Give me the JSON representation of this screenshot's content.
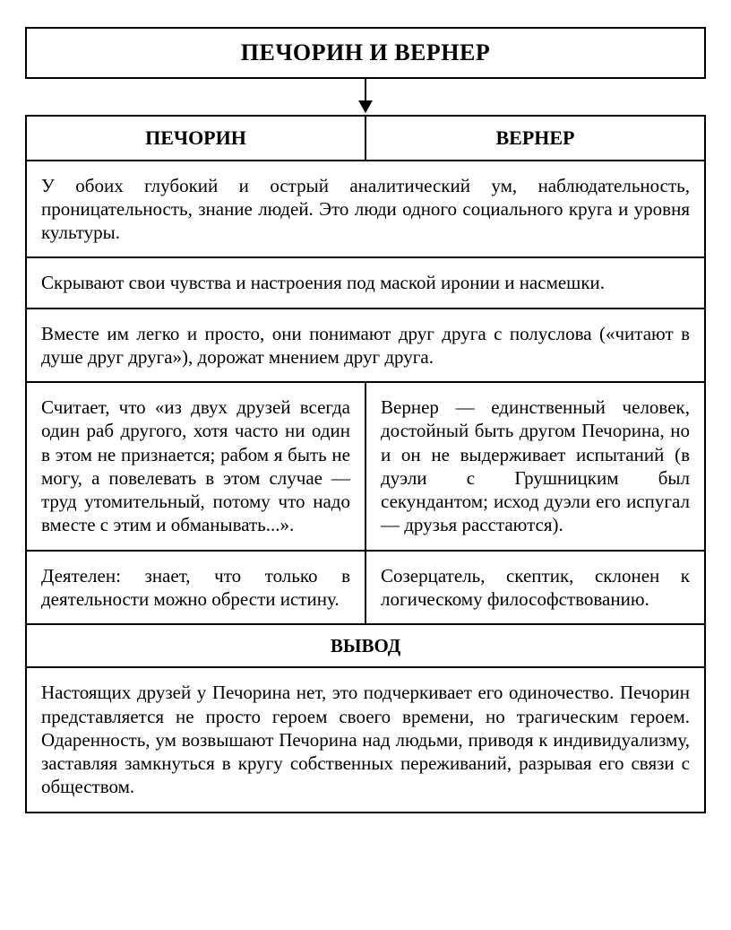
{
  "title": "ПЕЧОРИН И ВЕРНЕР",
  "headers": {
    "left": "ПЕЧОРИН",
    "right": "ВЕРНЕР"
  },
  "common": [
    "У обоих глубокий и острый аналитический ум, наблюдательность, проницательность, знание людей. Это люди одного социального круга и уровня культуры.",
    "Скрывают свои чувства и настроения под маской иронии и насмешки.",
    "Вместе им легко и просто, они понимают друг друга с полуслова («читают в душе друг друга»), дорожат мнением друг друга."
  ],
  "diff": [
    {
      "left": "Считает, что «из двух друзей всегда один раб другого, хотя часто ни один в этом не признается; рабом я быть не могу, а повелевать в этом случае — труд утомительный, потому что надо вместе с этим и обманывать...».",
      "right": "Вернер — единственный человек, достойный быть другом Печорина, но и он не выдерживает испытаний (в дуэли с Грушницким был секундантом; исход дуэли его испугал — друзья расстаются)."
    },
    {
      "left": "Деятелен: знает, что только в деятельности можно обрести истину.",
      "right": "Созерцатель, скептик, склонен к логическому философствованию."
    }
  ],
  "conclusion": {
    "heading": "ВЫВОД",
    "text": "Настоящих друзей у Печорина нет, это подчеркивает его одиночество. Печорин представляется не просто героем своего времени, но трагическим героем. Одаренность, ум возвышают Печорина над людьми, приводя к индивидуализму, заставляя замкнуться в кругу собственных переживаний, разрывая его связи с обществом."
  },
  "styles": {
    "border_color": "#000000",
    "background_color": "#ffffff",
    "text_color": "#000000",
    "title_fontsize": 26,
    "header_fontsize": 22,
    "body_fontsize": 21,
    "font_family": "Times New Roman"
  }
}
